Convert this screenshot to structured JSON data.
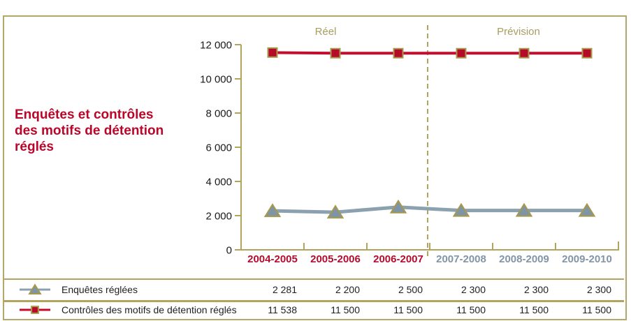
{
  "panel": {
    "title": "Enquêtes et contrôles\ndes motifs de détention\nréglés"
  },
  "chart_data": {
    "type": "line",
    "title": "Enquêtes et contrôles des motifs de détention réglés",
    "categories": [
      "2004-2005",
      "2005-2006",
      "2006-2007",
      "2007-2008",
      "2008-2009",
      "2009-2010"
    ],
    "series": [
      {
        "name": "Enquêtes réglées",
        "values": [
          2281,
          2200,
          2500,
          2300,
          2300,
          2300
        ],
        "display_values": [
          "2 281",
          "2 200",
          "2 500",
          "2 300",
          "2 300",
          "2 300"
        ],
        "color": "#8ba1b0",
        "line_width": 5,
        "marker": "triangle",
        "marker_fill": "#7e95a5",
        "marker_stroke": "#a8984d"
      },
      {
        "name": "Contrôles des motifs de détention réglés",
        "values": [
          11538,
          11500,
          11500,
          11500,
          11500,
          11500
        ],
        "display_values": [
          "11 538",
          "11 500",
          "11 500",
          "11 500",
          "11 500",
          "11 500"
        ],
        "color": "#c00e2f",
        "line_width": 4,
        "marker": "square",
        "marker_fill": "#b50a28",
        "marker_stroke": "#a8984d"
      }
    ],
    "ylim": [
      0,
      12000
    ],
    "ytick_step": 2000,
    "ytick_labels": [
      "0",
      "2 000",
      "4 000",
      "6 000",
      "8 000",
      "10 000",
      "12 000"
    ],
    "grid": false,
    "legend_position": "bottom-table",
    "divider_after_index": 2,
    "annotations": {
      "left": "Réel",
      "right": "Prévision"
    },
    "x_label_colors": [
      "#b30d2e",
      "#b30d2e",
      "#b30d2e",
      "#8195a6",
      "#8195a6",
      "#8195a6"
    ]
  },
  "colors": {
    "panel_border": "#b3a76a",
    "axis": "#b2a35d",
    "region_text": "#a89c63",
    "tick_text": "#1a1a1a",
    "table_text": "#1f1f1f",
    "title_text": "#bb0629"
  }
}
